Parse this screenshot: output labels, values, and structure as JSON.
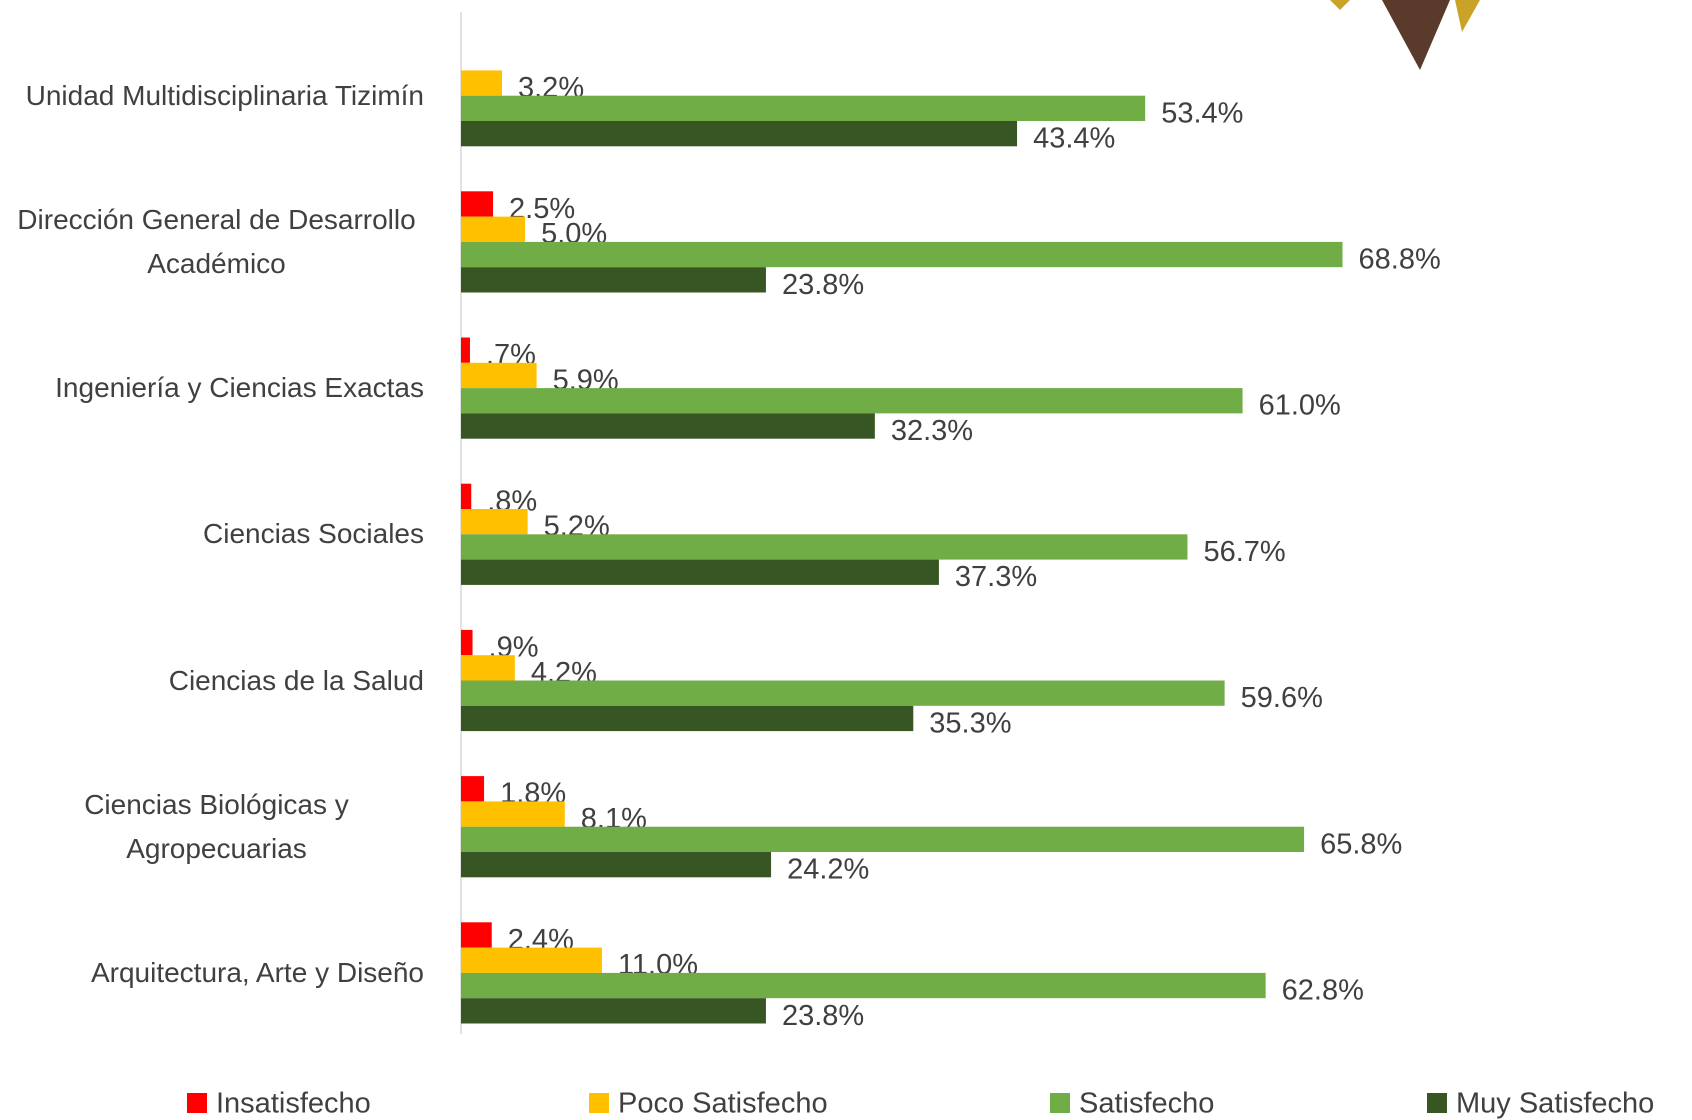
{
  "chart_data": {
    "type": "bar",
    "orientation": "horizontal",
    "categories": [
      "Unidad Multidisciplinaria Tizimín",
      "Dirección General de Desarrollo Académico",
      "Ingeniería y Ciencias Exactas",
      "Ciencias Sociales",
      "Ciencias de la Salud",
      "Ciencias Biológicas y Agropecuarias",
      "Arquitectura, Arte y Diseño"
    ],
    "series": [
      {
        "name": "Insatisfecho",
        "color": "#ff0000",
        "values": [
          null,
          2.5,
          0.7,
          0.8,
          0.9,
          1.8,
          2.4
        ],
        "value_labels": [
          null,
          "2.5%",
          ".7%",
          ".8%",
          ".9%",
          "1.8%",
          "2.4%"
        ]
      },
      {
        "name": "Poco Satisfecho",
        "color": "#ffc000",
        "values": [
          3.2,
          5.0,
          5.9,
          5.2,
          4.2,
          8.1,
          11.0
        ],
        "value_labels": [
          "3.2%",
          "5.0%",
          "5.9%",
          "5.2%",
          "4.2%",
          "8.1%",
          "11.0%"
        ]
      },
      {
        "name": "Satisfecho",
        "color": "#70ad47",
        "values": [
          53.4,
          68.8,
          61.0,
          56.7,
          59.6,
          65.8,
          62.8
        ],
        "value_labels": [
          "53.4%",
          "68.8%",
          "61.0%",
          "56.7%",
          "59.6%",
          "65.8%",
          "62.8%"
        ]
      },
      {
        "name": "Muy Satisfecho",
        "color": "#375623",
        "values": [
          43.4,
          23.8,
          32.3,
          37.3,
          35.3,
          24.2,
          23.8
        ],
        "value_labels": [
          "43.4%",
          "23.8%",
          "32.3%",
          "37.3%",
          "35.3%",
          "24.2%",
          "23.8%"
        ]
      }
    ],
    "xlim": [
      0,
      80
    ],
    "legend": "bottom"
  }
}
